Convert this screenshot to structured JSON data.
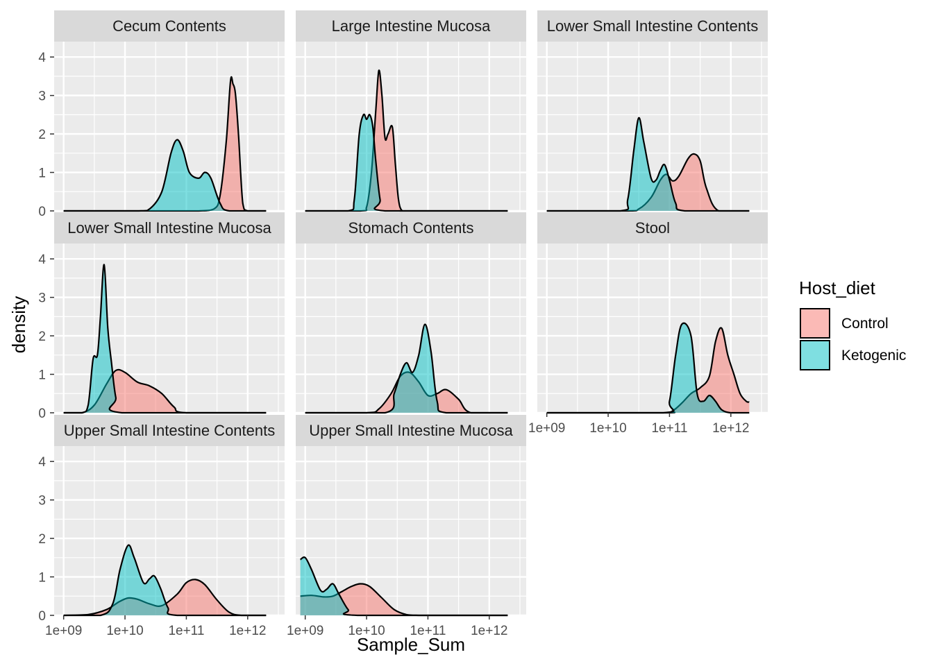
{
  "chart_data": {
    "type": "area",
    "subtype": "faceted density plot",
    "xlabel": "Sample_Sum",
    "ylabel": "density",
    "x_scale": "log10",
    "x_ticks": [
      1000000000.0,
      10000000000.0,
      100000000000.0,
      1000000000000.0
    ],
    "x_tick_labels": [
      "1e+09",
      "1e+10",
      "1e+11",
      "1e+12"
    ],
    "xlim": [
      700000000.0,
      4000000000000.0
    ],
    "y_ticks": [
      0,
      1,
      2,
      3,
      4
    ],
    "ylim": [
      0,
      4.4
    ],
    "grid": true,
    "legend": {
      "title": "Host_diet",
      "placement": "right",
      "entries": [
        {
          "name": "Control",
          "color": "#F8766D"
        },
        {
          "name": "Ketogenic",
          "color": "#00BFC4"
        }
      ]
    },
    "colors": {
      "panel_bg": "#EBEBEB",
      "strip_bg": "#D9D9D9",
      "grid": "#FFFFFF",
      "outline": "#000000"
    },
    "fill_alpha": 0.5,
    "facets": [
      {
        "name": "Cecum Contents",
        "series": [
          {
            "name": "Control",
            "log10_x": [
              9.0,
              10.8,
              11.2,
              11.45,
              11.55,
              11.65,
              11.72,
              11.76,
              11.8,
              11.85,
              11.92,
              12.0,
              12.3
            ],
            "density": [
              0,
              0,
              0,
              0.05,
              0.4,
              1.8,
              3.38,
              3.3,
              3.05,
              2.0,
              0.2,
              0,
              0
            ]
          },
          {
            "name": "Ketogenic",
            "log10_x": [
              9.0,
              10.2,
              10.4,
              10.6,
              10.75,
              10.85,
              10.95,
              11.05,
              11.2,
              11.3,
              11.4,
              11.55,
              11.7,
              12.3
            ],
            "density": [
              0,
              0,
              0.05,
              0.5,
              1.5,
              1.85,
              1.55,
              1.0,
              0.85,
              1.0,
              0.85,
              0.2,
              0,
              0
            ]
          }
        ]
      },
      {
        "name": "Large Intestine Mucosa",
        "series": [
          {
            "name": "Control",
            "log10_x": [
              9.0,
              9.9,
              10.0,
              10.08,
              10.15,
              10.2,
              10.25,
              10.3,
              10.35,
              10.42,
              10.47,
              10.52,
              10.58,
              10.7,
              12.3
            ],
            "density": [
              0,
              0,
              0.1,
              1.0,
              2.6,
              3.65,
              3.0,
              1.9,
              2.0,
              2.18,
              1.2,
              0.3,
              0,
              0,
              0
            ]
          },
          {
            "name": "Ketogenic",
            "log10_x": [
              9.0,
              9.7,
              9.8,
              9.88,
              9.95,
              10.0,
              10.05,
              10.1,
              10.15,
              10.22,
              10.3,
              12.3
            ],
            "density": [
              0,
              0,
              0.3,
              2.0,
              2.5,
              2.38,
              2.5,
              2.2,
              1.3,
              0.3,
              0,
              0
            ]
          }
        ]
      },
      {
        "name": "Lower Small Intestine Contents",
        "series": [
          {
            "name": "Control",
            "log10_x": [
              9.0,
              10.3,
              10.5,
              10.7,
              10.85,
              10.95,
              11.05,
              11.15,
              11.3,
              11.4,
              11.5,
              11.6,
              11.8,
              12.3
            ],
            "density": [
              0,
              0,
              0.05,
              0.35,
              0.8,
              0.95,
              0.78,
              0.9,
              1.35,
              1.48,
              1.3,
              0.6,
              0,
              0
            ]
          },
          {
            "name": "Ketogenic",
            "log10_x": [
              9.0,
              10.2,
              10.32,
              10.42,
              10.5,
              10.58,
              10.7,
              10.78,
              10.85,
              10.92,
              11.0,
              11.1,
              11.25,
              12.3
            ],
            "density": [
              0,
              0,
              0.3,
              1.6,
              2.42,
              1.8,
              0.85,
              0.8,
              1.05,
              1.2,
              0.8,
              0.2,
              0,
              0
            ]
          }
        ]
      },
      {
        "name": "Lower Small Intestine Mucosa",
        "series": [
          {
            "name": "Control",
            "log10_x": [
              9.0,
              9.3,
              9.5,
              9.7,
              9.85,
              10.0,
              10.2,
              10.4,
              10.6,
              10.8,
              11.0,
              12.3
            ],
            "density": [
              0,
              0,
              0.2,
              0.75,
              1.1,
              1.05,
              0.8,
              0.7,
              0.5,
              0.15,
              0,
              0
            ]
          },
          {
            "name": "Ketogenic",
            "log10_x": [
              9.0,
              9.3,
              9.4,
              9.48,
              9.55,
              9.6,
              9.66,
              9.72,
              9.78,
              9.85,
              9.95,
              12.3
            ],
            "density": [
              0,
              0,
              0.2,
              1.4,
              1.5,
              2.5,
              3.85,
              2.2,
              1.3,
              0.4,
              0,
              0
            ]
          }
        ]
      },
      {
        "name": "Stomach Contents",
        "series": [
          {
            "name": "Control",
            "log10_x": [
              9.0,
              10.0,
              10.2,
              10.4,
              10.55,
              10.7,
              10.85,
              11.0,
              11.15,
              11.3,
              11.5,
              11.7,
              12.3
            ],
            "density": [
              0,
              0,
              0.1,
              0.5,
              0.95,
              1.05,
              0.8,
              0.45,
              0.5,
              0.6,
              0.35,
              0,
              0
            ]
          },
          {
            "name": "Ketogenic",
            "log10_x": [
              9.0,
              10.3,
              10.45,
              10.55,
              10.65,
              10.75,
              10.85,
              10.95,
              11.05,
              11.15,
              11.3,
              12.3
            ],
            "density": [
              0,
              0,
              0.5,
              1.0,
              1.3,
              1.05,
              1.5,
              2.3,
              1.6,
              0.3,
              0,
              0
            ]
          }
        ]
      },
      {
        "name": "Stool",
        "series": [
          {
            "name": "Control",
            "log10_x": [
              9.0,
              10.9,
              11.05,
              11.2,
              11.35,
              11.5,
              11.65,
              11.75,
              11.85,
              11.95,
              12.05,
              12.15,
              12.25,
              12.3
            ],
            "density": [
              0,
              0,
              0.05,
              0.25,
              0.5,
              0.65,
              0.95,
              1.85,
              2.2,
              1.5,
              1.0,
              0.5,
              0.3,
              0.28
            ]
          },
          {
            "name": "Ketogenic",
            "log10_x": [
              9.0,
              10.9,
              11.0,
              11.1,
              11.2,
              11.35,
              11.45,
              11.55,
              11.65,
              11.75,
              11.85,
              12.0,
              12.3
            ],
            "density": [
              0,
              0,
              0.3,
              1.5,
              2.3,
              2.0,
              0.5,
              0.3,
              0.45,
              0.3,
              0.08,
              0,
              0
            ]
          }
        ]
      },
      {
        "name": "Upper Small Intestine Contents",
        "series": [
          {
            "name": "Control",
            "log10_x": [
              9.0,
              9.4,
              9.7,
              9.9,
              10.05,
              10.2,
              10.4,
              10.6,
              10.85,
              11.0,
              11.15,
              11.3,
              11.5,
              11.7,
              11.9,
              12.3
            ],
            "density": [
              0,
              0.02,
              0.15,
              0.35,
              0.45,
              0.42,
              0.3,
              0.25,
              0.55,
              0.85,
              0.93,
              0.8,
              0.4,
              0.08,
              0,
              0
            ]
          },
          {
            "name": "Ketogenic",
            "log10_x": [
              9.0,
              9.6,
              9.8,
              9.92,
              10.05,
              10.15,
              10.3,
              10.4,
              10.48,
              10.58,
              10.7,
              10.85,
              12.3
            ],
            "density": [
              0,
              0,
              0.3,
              1.2,
              1.82,
              1.5,
              0.85,
              0.95,
              1.02,
              0.7,
              0.2,
              0,
              0
            ]
          }
        ]
      },
      {
        "name": "Upper Small Intestine Mucosa",
        "series": [
          {
            "name": "Control",
            "log10_x": [
              8.92,
              9.1,
              9.3,
              9.45,
              9.6,
              9.75,
              9.9,
              10.05,
              10.25,
              10.45,
              10.65,
              10.85,
              11.0,
              12.3
            ],
            "density": [
              0.5,
              0.52,
              0.48,
              0.5,
              0.62,
              0.75,
              0.82,
              0.75,
              0.45,
              0.15,
              0.02,
              0,
              0,
              0
            ]
          },
          {
            "name": "Ketogenic",
            "log10_x": [
              8.92,
              9.0,
              9.1,
              9.25,
              9.35,
              9.45,
              9.55,
              9.7,
              9.85,
              12.3
            ],
            "density": [
              1.45,
              1.5,
              1.2,
              0.65,
              0.68,
              0.82,
              0.55,
              0.15,
              0,
              0
            ]
          }
        ]
      }
    ]
  }
}
